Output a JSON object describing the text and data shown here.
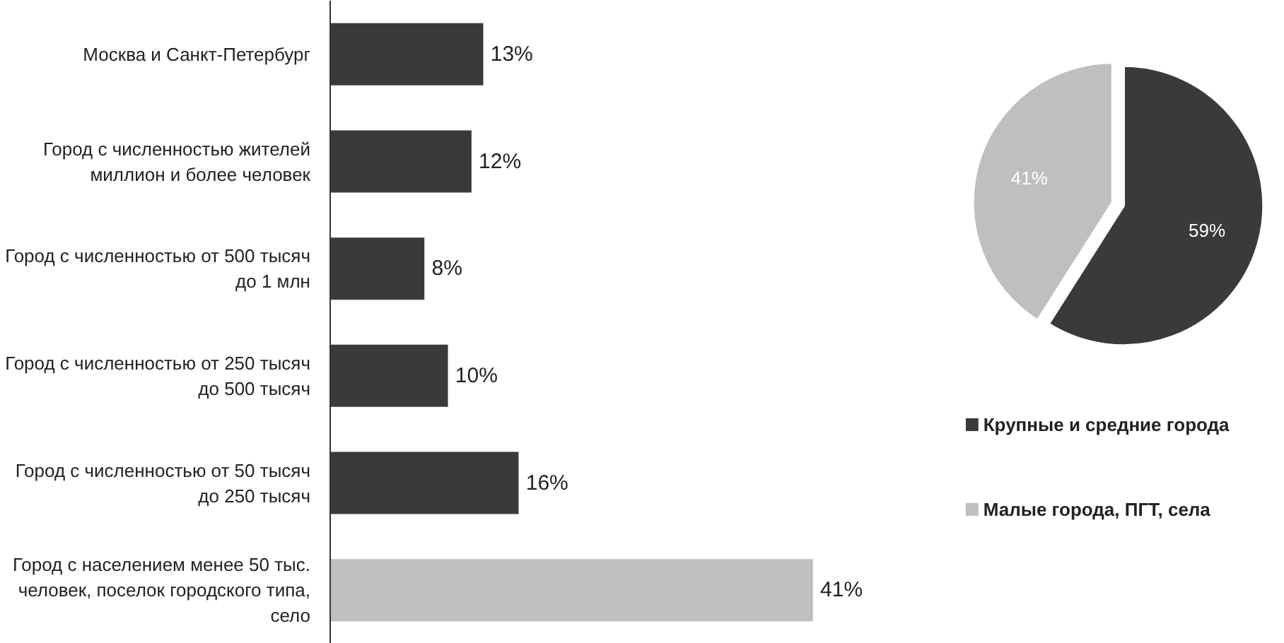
{
  "chart_data": [
    {
      "type": "bar",
      "orientation": "horizontal",
      "categories": [
        "Москва и Санкт-Петербург",
        "Город с численностью жителей миллион и более человек",
        "Город с численностью от 500 тысяч до 1 млн",
        "Город с численностью от 250 тысяч до 500 тысяч",
        "Город с численностью от 50 тысяч до 250 тысяч",
        "Город с населением менее 50 тыс. человек, поселок городского типа, село"
      ],
      "values": [
        13,
        12,
        8,
        10,
        16,
        41
      ],
      "colors": [
        "#3a3a3a",
        "#3a3a3a",
        "#3a3a3a",
        "#3a3a3a",
        "#3a3a3a",
        "#bfbfbf"
      ],
      "value_labels": [
        "13%",
        "12%",
        "8%",
        "10%",
        "16%",
        "41%"
      ],
      "grid": false
    },
    {
      "type": "pie",
      "categories": [
        "Крупные и средние города",
        "Малые города, ПГТ, села"
      ],
      "values": [
        59,
        41
      ],
      "colors": [
        "#3a3a3a",
        "#bfbfbf"
      ],
      "value_labels": [
        "59%",
        "41%"
      ],
      "legend": "bottom"
    }
  ]
}
